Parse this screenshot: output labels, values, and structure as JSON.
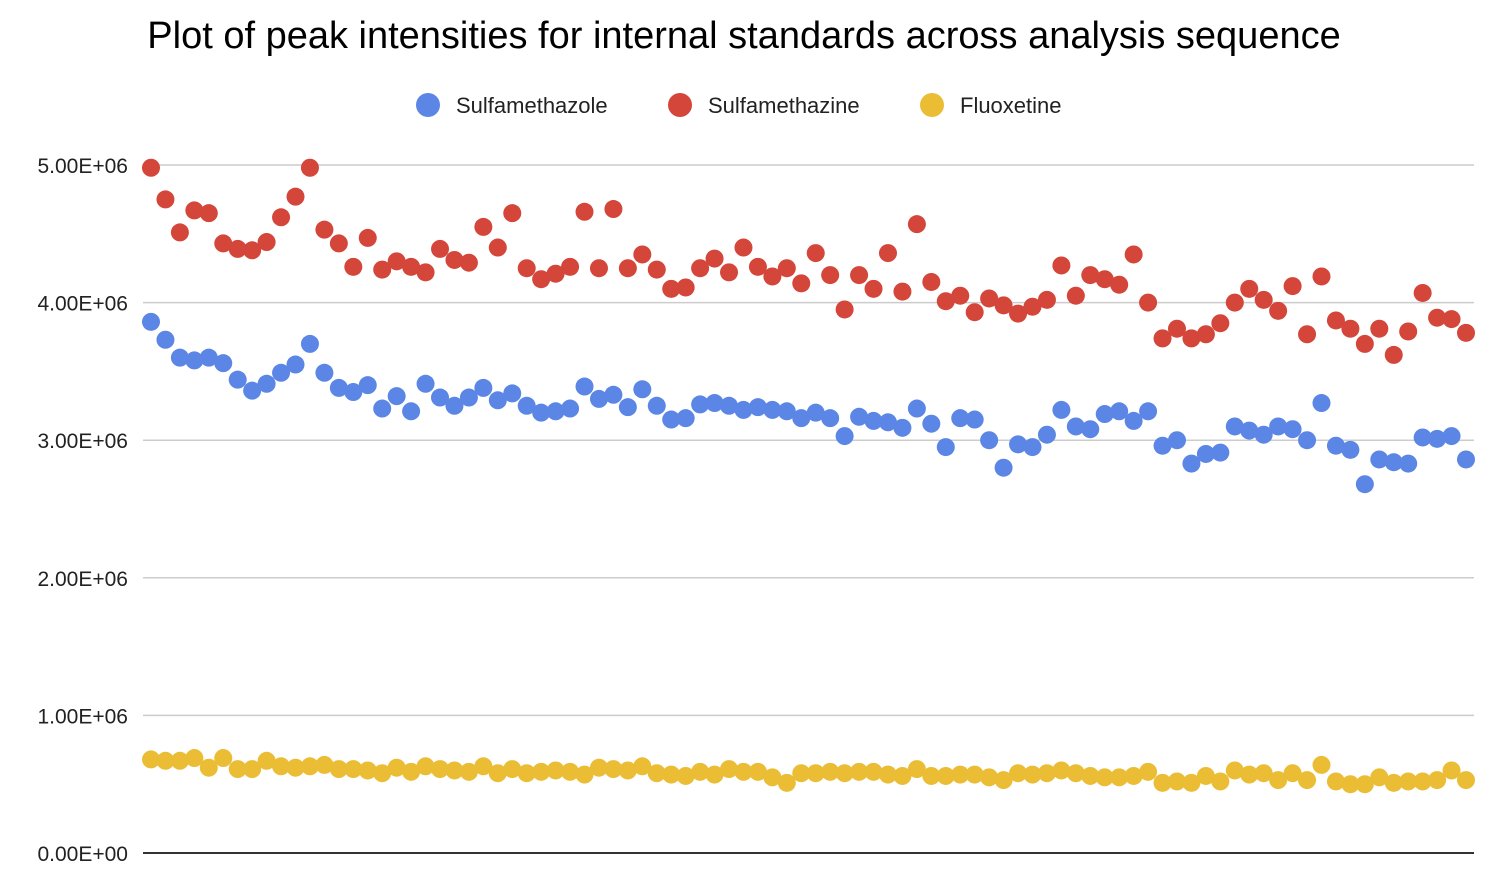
{
  "chart_data": {
    "type": "scatter",
    "title": "Plot of peak intensities for internal standards across analysis sequence",
    "xlabel": "",
    "ylabel": "",
    "ylim": [
      0,
      5000000
    ],
    "yticks": [
      0,
      1000000,
      2000000,
      3000000,
      4000000,
      5000000
    ],
    "ytick_labels": [
      "0.00E+00",
      "1.00E+06",
      "2.00E+06",
      "3.00E+06",
      "4.00E+06",
      "5.00E+06"
    ],
    "grid": true,
    "legend_position": "top",
    "x": [
      1,
      2,
      3,
      4,
      5,
      6,
      7,
      8,
      9,
      10,
      11,
      12,
      13,
      14,
      15,
      16,
      17,
      18,
      19,
      20,
      21,
      22,
      23,
      24,
      25,
      26,
      27,
      28,
      29,
      30,
      31,
      32,
      33,
      34,
      35,
      36,
      37,
      38,
      39,
      40,
      41,
      42,
      43,
      44,
      45,
      46,
      47,
      48,
      49,
      50,
      51,
      52,
      53,
      54,
      55,
      56,
      57,
      58,
      59,
      60,
      61,
      62,
      63,
      64,
      65,
      66,
      67,
      68,
      69,
      70,
      71,
      72,
      73,
      74,
      75,
      76,
      77,
      78,
      79,
      80,
      81,
      82,
      83,
      84,
      85,
      86,
      87,
      88,
      89,
      90,
      91,
      92
    ],
    "series": [
      {
        "name": "Sulfamethazole",
        "color": "#5b86e5",
        "values": [
          3860000,
          3730000,
          3600000,
          3580000,
          3600000,
          3560000,
          3440000,
          3360000,
          3410000,
          3490000,
          3550000,
          3700000,
          3490000,
          3380000,
          3350000,
          3400000,
          3230000,
          3320000,
          3210000,
          3410000,
          3310000,
          3250000,
          3310000,
          3380000,
          3290000,
          3340000,
          3250000,
          3200000,
          3210000,
          3230000,
          3390000,
          3300000,
          3330000,
          3240000,
          3370000,
          3250000,
          3150000,
          3160000,
          3260000,
          3270000,
          3250000,
          3220000,
          3240000,
          3220000,
          3210000,
          3160000,
          3200000,
          3160000,
          3030000,
          3170000,
          3140000,
          3130000,
          3090000,
          3230000,
          3120000,
          2950000,
          3160000,
          3150000,
          3000000,
          2800000,
          2970000,
          2950000,
          3040000,
          3220000,
          3100000,
          3080000,
          3190000,
          3210000,
          3140000,
          3210000,
          2960000,
          3000000,
          2830000,
          2900000,
          2910000,
          3100000,
          3070000,
          3040000,
          3100000,
          3080000,
          3000000,
          3270000,
          2960000,
          2930000,
          2680000,
          2860000,
          2840000,
          2830000,
          3020000,
          3010000,
          3030000,
          2860000
        ]
      },
      {
        "name": "Sulfamethazine",
        "color": "#d4453a",
        "values": [
          4980000,
          4750000,
          4510000,
          4670000,
          4650000,
          4430000,
          4390000,
          4380000,
          4440000,
          4620000,
          4770000,
          4980000,
          4530000,
          4430000,
          4260000,
          4470000,
          4240000,
          4300000,
          4260000,
          4220000,
          4390000,
          4310000,
          4290000,
          4550000,
          4400000,
          4650000,
          4250000,
          4170000,
          4210000,
          4260000,
          4660000,
          4250000,
          4680000,
          4250000,
          4350000,
          4240000,
          4100000,
          4110000,
          4250000,
          4320000,
          4220000,
          4400000,
          4260000,
          4190000,
          4250000,
          4140000,
          4360000,
          4200000,
          3950000,
          4200000,
          4100000,
          4360000,
          4080000,
          4570000,
          4150000,
          4010000,
          4050000,
          3930000,
          4030000,
          3980000,
          3920000,
          3970000,
          4020000,
          4270000,
          4050000,
          4200000,
          4170000,
          4130000,
          4350000,
          4000000,
          3740000,
          3810000,
          3740000,
          3770000,
          3850000,
          4000000,
          4100000,
          4020000,
          3940000,
          4120000,
          3770000,
          4190000,
          3870000,
          3810000,
          3700000,
          3810000,
          3620000,
          3790000,
          4070000,
          3890000,
          3880000,
          3780000
        ]
      },
      {
        "name": "Fluoxetine",
        "color": "#ebbd35",
        "values": [
          680000,
          670000,
          670000,
          690000,
          620000,
          690000,
          610000,
          610000,
          670000,
          630000,
          620000,
          630000,
          640000,
          610000,
          610000,
          600000,
          580000,
          620000,
          590000,
          630000,
          610000,
          600000,
          590000,
          630000,
          580000,
          610000,
          580000,
          590000,
          600000,
          590000,
          570000,
          620000,
          610000,
          600000,
          630000,
          580000,
          570000,
          560000,
          590000,
          570000,
          610000,
          590000,
          590000,
          550000,
          510000,
          580000,
          580000,
          590000,
          580000,
          590000,
          590000,
          570000,
          560000,
          610000,
          560000,
          560000,
          570000,
          570000,
          550000,
          530000,
          580000,
          570000,
          580000,
          600000,
          580000,
          560000,
          550000,
          550000,
          560000,
          590000,
          510000,
          520000,
          510000,
          560000,
          520000,
          600000,
          570000,
          580000,
          530000,
          580000,
          530000,
          640000,
          520000,
          500000,
          500000,
          550000,
          510000,
          520000,
          520000,
          530000,
          600000,
          530000
        ]
      }
    ]
  }
}
